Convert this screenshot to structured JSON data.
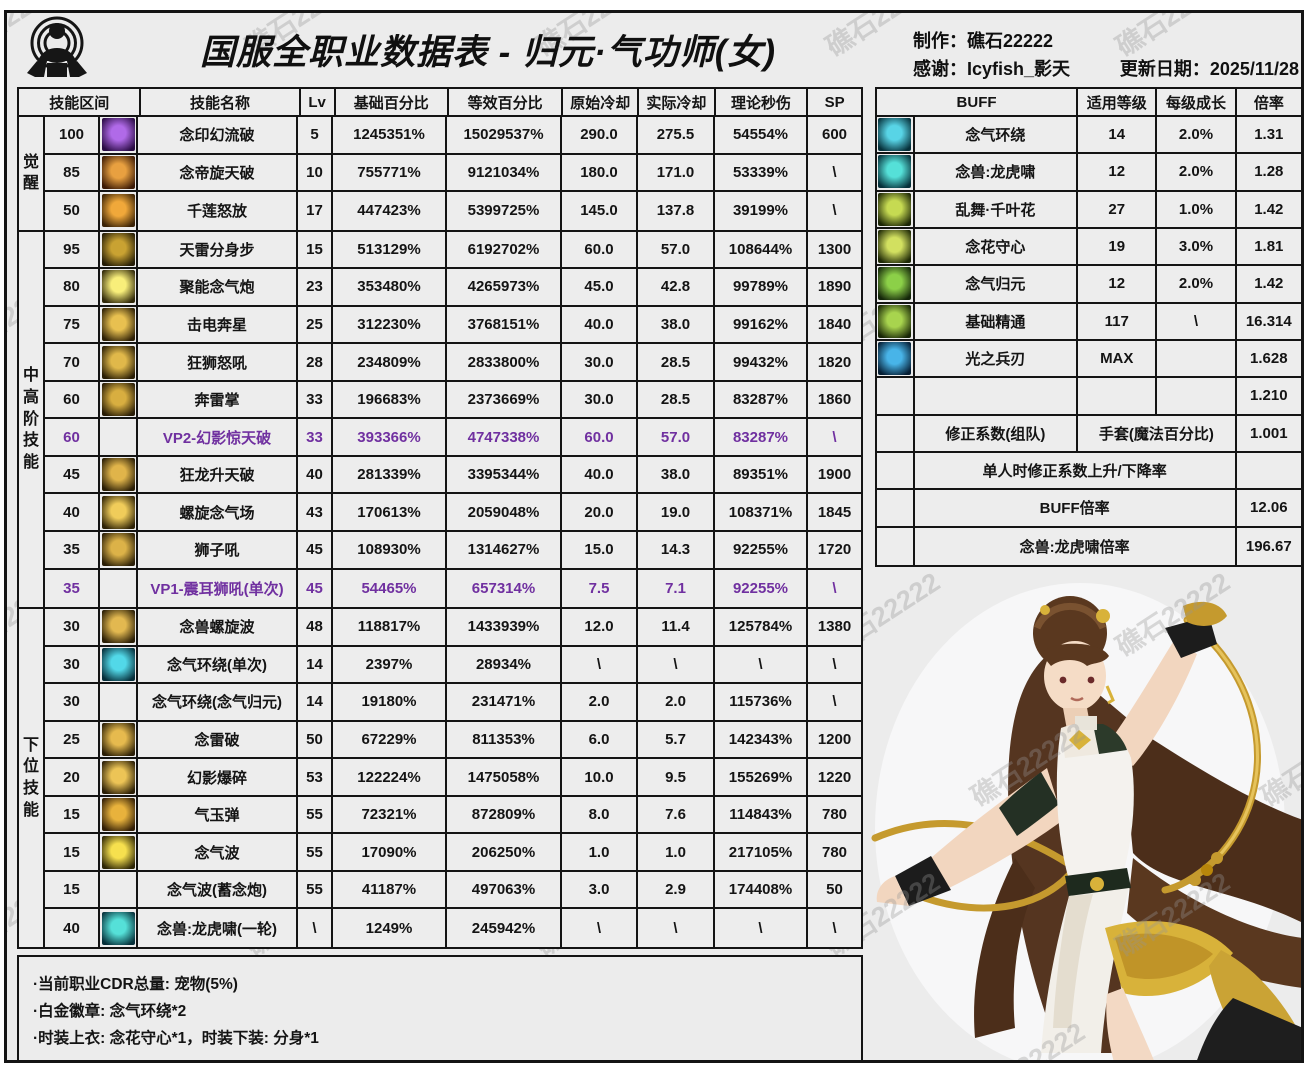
{
  "watermark": "礁石22222",
  "header": {
    "title": "国服全职业数据表 - 归元·气功师(女)",
    "maker": "制作：礁石22222",
    "thanks": "感谢：Icyfish_影天",
    "updated": "更新日期：2025/11/28"
  },
  "skill_table": {
    "headers": {
      "range": "技能区间",
      "name": "技能名称",
      "lv": "Lv",
      "base": "基础百分比",
      "equiv": "等效百分比",
      "cd": "原始冷却",
      "cd_real": "实际冷却",
      "dps": "理论秒伤",
      "sp": "SP"
    },
    "groups": [
      {
        "label": "觉醒",
        "rows": [
          {
            "range": "100",
            "icon": "purple-flame",
            "name": "念印幻流破",
            "lv": "5",
            "base": "1245351%",
            "equiv": "15029537%",
            "cd": "290.0",
            "cd_real": "275.5",
            "dps": "54554%",
            "sp": "600",
            "hl": false
          },
          {
            "range": "85",
            "icon": "orange-crest",
            "name": "念帝旋天破",
            "lv": "10",
            "base": "755771%",
            "equiv": "9121034%",
            "cd": "180.0",
            "cd_real": "171.0",
            "dps": "53339%",
            "sp": "\\",
            "hl": false
          },
          {
            "range": "50",
            "icon": "orange-flower",
            "name": "千莲怒放",
            "lv": "17",
            "base": "447423%",
            "equiv": "5399725%",
            "cd": "145.0",
            "cd_real": "137.8",
            "dps": "39199%",
            "sp": "\\",
            "hl": false
          }
        ]
      },
      {
        "label": "中高阶技能",
        "rows": [
          {
            "range": "95",
            "icon": "gold-lightning",
            "name": "天雷分身步",
            "lv": "15",
            "base": "513129%",
            "equiv": "6192702%",
            "cd": "60.0",
            "cd_real": "57.0",
            "dps": "108644%",
            "sp": "1300",
            "hl": false
          },
          {
            "range": "80",
            "icon": "yellow-burst",
            "name": "聚能念气炮",
            "lv": "23",
            "base": "353480%",
            "equiv": "4265973%",
            "cd": "45.0",
            "cd_real": "42.8",
            "dps": "99789%",
            "sp": "1890",
            "hl": false
          },
          {
            "range": "75",
            "icon": "gold-rider",
            "name": "击电奔星",
            "lv": "25",
            "base": "312230%",
            "equiv": "3768151%",
            "cd": "40.0",
            "cd_real": "38.0",
            "dps": "99162%",
            "sp": "1840",
            "hl": false
          },
          {
            "range": "70",
            "icon": "gold-lion",
            "name": "狂狮怒吼",
            "lv": "28",
            "base": "234809%",
            "equiv": "2833800%",
            "cd": "30.0",
            "cd_real": "28.5",
            "dps": "99432%",
            "sp": "1820",
            "hl": false
          },
          {
            "range": "60",
            "icon": "gold-palm",
            "name": "奔雷掌",
            "lv": "33",
            "base": "196683%",
            "equiv": "2373669%",
            "cd": "30.0",
            "cd_real": "28.5",
            "dps": "83287%",
            "sp": "1860",
            "hl": false
          },
          {
            "range": "60",
            "icon": null,
            "name": "VP2-幻影惊天破",
            "lv": "33",
            "base": "393366%",
            "equiv": "4747338%",
            "cd": "60.0",
            "cd_real": "57.0",
            "dps": "83287%",
            "sp": "\\",
            "hl": true
          },
          {
            "range": "45",
            "icon": "gold-dragon",
            "name": "狂龙升天破",
            "lv": "40",
            "base": "281339%",
            "equiv": "3395344%",
            "cd": "40.0",
            "cd_real": "38.0",
            "dps": "89351%",
            "sp": "1900",
            "hl": false
          },
          {
            "range": "40",
            "icon": "gold-ring",
            "name": "螺旋念气场",
            "lv": "43",
            "base": "170613%",
            "equiv": "2059048%",
            "cd": "20.0",
            "cd_real": "19.0",
            "dps": "108371%",
            "sp": "1845",
            "hl": false
          },
          {
            "range": "35",
            "icon": "gold-lionface",
            "name": "狮子吼",
            "lv": "45",
            "base": "108930%",
            "equiv": "1314627%",
            "cd": "15.0",
            "cd_real": "14.3",
            "dps": "92255%",
            "sp": "1720",
            "hl": false
          },
          {
            "range": "35",
            "icon": null,
            "name": "VP1-震耳狮吼(单次)",
            "lv": "45",
            "base": "54465%",
            "equiv": "657314%",
            "cd": "7.5",
            "cd_real": "7.1",
            "dps": "92255%",
            "sp": "\\",
            "hl": true
          }
        ]
      },
      {
        "label": "下位技能",
        "rows": [
          {
            "range": "30",
            "icon": "gold-beast",
            "name": "念兽螺旋波",
            "lv": "48",
            "base": "118817%",
            "equiv": "1433939%",
            "cd": "12.0",
            "cd_real": "11.4",
            "dps": "125784%",
            "sp": "1380",
            "hl": false
          },
          {
            "range": "30",
            "icon": "cyan-figure",
            "name": "念气环绕(单次)",
            "lv": "14",
            "base": "2397%",
            "equiv": "28934%",
            "cd": "\\",
            "cd_real": "\\",
            "dps": "\\",
            "sp": "\\",
            "hl": false
          },
          {
            "range": "30",
            "icon": null,
            "name": "念气环绕(念气归元)",
            "lv": "14",
            "base": "19180%",
            "equiv": "231471%",
            "cd": "2.0",
            "cd_real": "2.0",
            "dps": "115736%",
            "sp": "\\",
            "hl": false
          },
          {
            "range": "25",
            "icon": "gold-thunder",
            "name": "念雷破",
            "lv": "50",
            "base": "67229%",
            "equiv": "811353%",
            "cd": "6.0",
            "cd_real": "5.7",
            "dps": "142343%",
            "sp": "1200",
            "hl": false
          },
          {
            "range": "20",
            "icon": "gold-meditate",
            "name": "幻影爆碎",
            "lv": "53",
            "base": "122224%",
            "equiv": "1475058%",
            "cd": "10.0",
            "cd_real": "9.5",
            "dps": "155269%",
            "sp": "1220",
            "hl": false
          },
          {
            "range": "15",
            "icon": "gold-orb",
            "name": "气玉弹",
            "lv": "55",
            "base": "72321%",
            "equiv": "872809%",
            "cd": "8.0",
            "cd_real": "7.6",
            "dps": "114843%",
            "sp": "780",
            "hl": false
          },
          {
            "range": "15",
            "icon": "yellow-wave",
            "name": "念气波",
            "lv": "55",
            "base": "17090%",
            "equiv": "206250%",
            "cd": "1.0",
            "cd_real": "1.0",
            "dps": "217105%",
            "sp": "780",
            "hl": false
          },
          {
            "range": "15",
            "icon": null,
            "name": "念气波(蓄念炮)",
            "lv": "55",
            "base": "41187%",
            "equiv": "497063%",
            "cd": "3.0",
            "cd_real": "2.9",
            "dps": "174408%",
            "sp": "50",
            "hl": false
          },
          {
            "range": "40",
            "icon": "cyan-tiger",
            "name": "念兽:龙虎啸(一轮)",
            "lv": "\\",
            "base": "1249%",
            "equiv": "245942%",
            "cd": "\\",
            "cd_real": "\\",
            "dps": "\\",
            "sp": "\\",
            "hl": false
          }
        ]
      }
    ]
  },
  "buff_table": {
    "headers": {
      "buff": "BUFF",
      "level": "适用等级",
      "growth": "每级成长",
      "mult": "倍率"
    },
    "rows": [
      {
        "type": "normal",
        "icon": "cyan-ring",
        "name": "念气环绕",
        "level": "14",
        "growth": "2.0%",
        "mult": "1.31"
      },
      {
        "type": "normal",
        "icon": "cyan-tiger",
        "name": "念兽:龙虎啸",
        "level": "12",
        "growth": "2.0%",
        "mult": "1.28"
      },
      {
        "type": "normal",
        "icon": "green-halo",
        "name": "乱舞·千叶花",
        "level": "27",
        "growth": "1.0%",
        "mult": "1.42"
      },
      {
        "type": "normal",
        "icon": "green-figure",
        "name": "念花守心",
        "level": "19",
        "growth": "3.0%",
        "mult": "1.81"
      },
      {
        "type": "normal",
        "icon": "green-swirl",
        "name": "念气归元",
        "level": "12",
        "growth": "2.0%",
        "mult": "1.42"
      },
      {
        "type": "normal",
        "icon": "green-fist",
        "name": "基础精通",
        "level": "117",
        "growth": "\\",
        "mult": "16.314"
      },
      {
        "type": "normal",
        "icon": "blue-star",
        "name": "光之兵刃",
        "level": "MAX",
        "growth": "",
        "mult": "1.628"
      },
      {
        "type": "normal",
        "icon": null,
        "name": "",
        "level": "",
        "growth": "",
        "mult": "1.210"
      },
      {
        "type": "split",
        "icon": null,
        "name": "修正系数(组队)",
        "merged": "手套(魔法百分比)",
        "mult": "1.001"
      },
      {
        "type": "wide",
        "icon": null,
        "name": "单人时修正系数上升/下降率",
        "mult": ""
      },
      {
        "type": "wide",
        "icon": null,
        "name": "BUFF倍率",
        "mult": "12.06"
      },
      {
        "type": "wide",
        "icon": null,
        "name": "念兽:龙虎啸倍率",
        "mult": "196.67"
      }
    ]
  },
  "notes": [
    "·当前职业CDR总量: 宠物(5%)",
    "·白金徽章: 念气环绕*2",
    "·时装上衣: 念花守心*1，时装下装: 分身*1"
  ],
  "icon_colors": {
    "purple-flame": [
      "#b06ae8",
      "#2a0c44"
    ],
    "orange-crest": [
      "#e8a040",
      "#3c1a06"
    ],
    "orange-flower": [
      "#f0a83a",
      "#3a2206"
    ],
    "gold-lightning": [
      "#c9a232",
      "#241c06"
    ],
    "yellow-burst": [
      "#f8ee7a",
      "#30280a"
    ],
    "gold-rider": [
      "#e8c050",
      "#2e2006"
    ],
    "gold-lion": [
      "#e0b84a",
      "#2a1e06"
    ],
    "gold-palm": [
      "#d8ae40",
      "#281c06"
    ],
    "gold-dragon": [
      "#e0b44a",
      "#2a1e06"
    ],
    "gold-ring": [
      "#f0cc5a",
      "#2e2206"
    ],
    "gold-lionface": [
      "#dcb248",
      "#2a1e06"
    ],
    "gold-beast": [
      "#e2b850",
      "#2a1e06"
    ],
    "cyan-figure": [
      "#52d8e8",
      "#062e3a"
    ],
    "gold-thunder": [
      "#e6ba4e",
      "#2a1e06"
    ],
    "gold-meditate": [
      "#ecc456",
      "#2a1e06"
    ],
    "gold-orb": [
      "#e8b23c",
      "#321e06"
    ],
    "yellow-wave": [
      "#f6e04e",
      "#2e2606"
    ],
    "cyan-tiger": [
      "#55e0d8",
      "#06303a"
    ],
    "cyan-ring": [
      "#58d4e6",
      "#06303a"
    ],
    "green-halo": [
      "#c6da52",
      "#1c2606"
    ],
    "green-figure": [
      "#d2e060",
      "#1e2806"
    ],
    "green-swirl": [
      "#8cd048",
      "#14260a"
    ],
    "green-fist": [
      "#a8d44e",
      "#182606"
    ],
    "blue-star": [
      "#48b4e8",
      "#061e34"
    ]
  },
  "colors": {
    "highlight": "#7030a0",
    "grid": "#141414",
    "cell_bg": "#ededed",
    "page_bg": "#ececec"
  }
}
